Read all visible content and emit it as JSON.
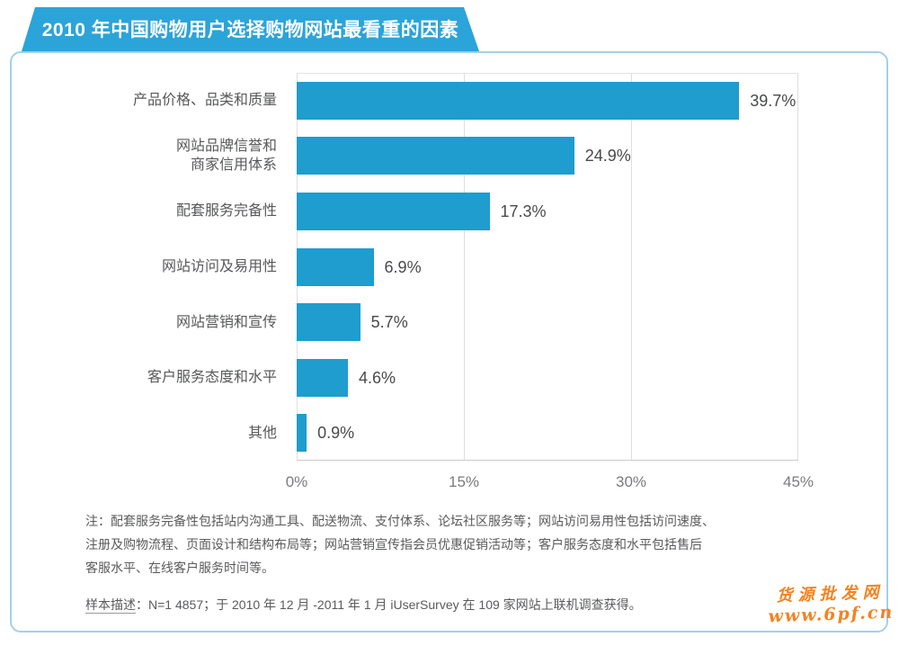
{
  "header": {
    "title": "2010 年中国购物用户选择购物网站最看重的因素"
  },
  "colors": {
    "banner": "#2ba4d9",
    "bar": "#1e9dce",
    "card_border": "#a2d0e9",
    "watermark": "#f58220"
  },
  "chart_data": {
    "type": "bar",
    "orientation": "horizontal",
    "title": "2010 年中国购物用户选择购物网站最看重的因素",
    "categories": [
      "产品价格、品类和质量",
      "网站品牌信誉和\n商家信用体系",
      "配套服务完备性",
      "网站访问及易用性",
      "网站营销和宣传",
      "客户服务态度和水平",
      "其他"
    ],
    "values": [
      39.7,
      24.9,
      17.3,
      6.9,
      5.7,
      4.6,
      0.9
    ],
    "value_labels": [
      "39.7%",
      "24.9%",
      "17.3%",
      "6.9%",
      "5.7%",
      "4.6%",
      "0.9%"
    ],
    "x_ticks": [
      "0%",
      "15%",
      "30%",
      "45%"
    ],
    "xlim": [
      0,
      45
    ],
    "xlabel": "",
    "ylabel": "",
    "grid": "vertical",
    "legend": "none",
    "bar_color": "#1e9dce"
  },
  "notes": {
    "lines": [
      "注：配套服务完备性包括站内沟通工具、配送物流、支付体系、论坛社区服务等；网站访问易用性包括访问速度、",
      "注册及购物流程、页面设计和结构布局等；网站营销宣传指会员优惠促销活动等；客户服务态度和水平包括售后",
      "客服水平、在线客户服务时间等。"
    ]
  },
  "sample": {
    "label": "样本描述",
    "text": "：N=1 4857；于 2010 年 12 月 -2011 年 1 月 iUserSurvey 在 109 家网站上联机调查获得。"
  },
  "watermark": {
    "line1": "货源批发网",
    "line2": "www.6pf.cn"
  }
}
